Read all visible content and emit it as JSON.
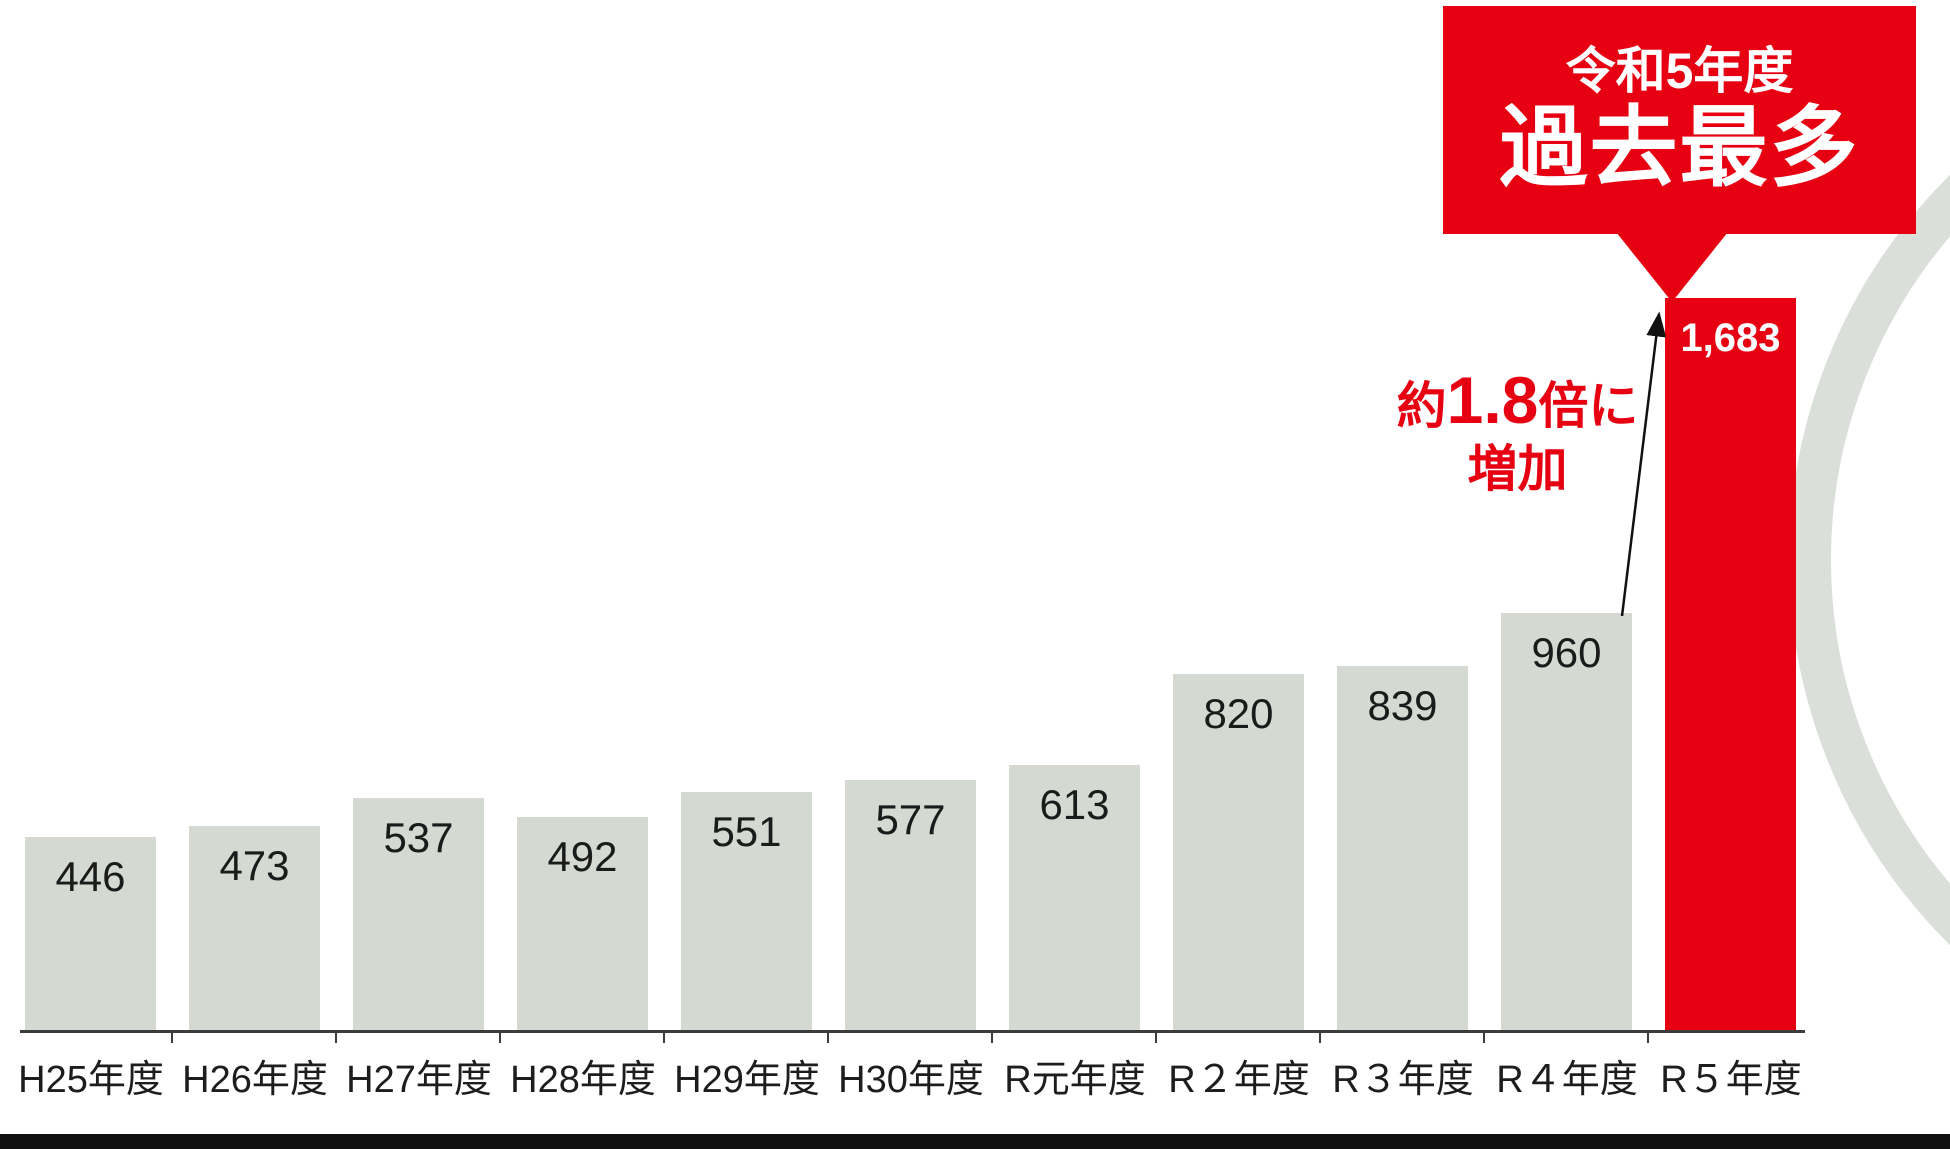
{
  "chart_data": {
    "type": "bar",
    "categories": [
      "H25年度",
      "H26年度",
      "H27年度",
      "H28年度",
      "H29年度",
      "H30年度",
      "R元年度",
      "R２年度",
      "R３年度",
      "R４年度",
      "R５年度"
    ],
    "values": [
      446,
      473,
      537,
      492,
      551,
      577,
      613,
      820,
      839,
      960,
      1683
    ],
    "value_labels": [
      "446",
      "473",
      "537",
      "492",
      "551",
      "577",
      "613",
      "820",
      "839",
      "960",
      "1,683"
    ],
    "highlight_index": 10,
    "bar_color": "#d4d9d2",
    "highlight_color": "#e60012",
    "value_label_color": "#1b1b1b",
    "highlight_value_label_color": "#ffffff",
    "xlabel": "",
    "ylabel": "",
    "ylim": [
      0,
      1700
    ],
    "grid": false,
    "legend": "none"
  },
  "callout": {
    "line1": "令和5年度",
    "line2": "過去最多",
    "bg_color": "#e60012",
    "text_color": "#ffffff"
  },
  "note": {
    "prefix": "約",
    "multiplier": "1.8",
    "suffix": "倍に",
    "line2": "増加",
    "color": "#e60012"
  }
}
